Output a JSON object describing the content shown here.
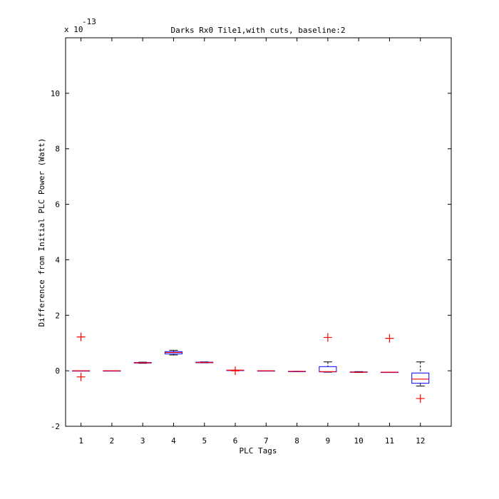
{
  "chart_data": {
    "type": "box",
    "title": "Darks Rx0 Tile1,with cuts, baseline:2",
    "xlabel": "PLC Tags",
    "ylabel": "Difference from Initial PLC Power (Watt)",
    "y_multiplier_base": "x 10",
    "y_multiplier_exp": "-13",
    "ylim": [
      -2,
      12
    ],
    "yticks": [
      -2,
      0,
      2,
      4,
      6,
      8,
      10
    ],
    "categories": [
      "1",
      "2",
      "3",
      "4",
      "5",
      "6",
      "7",
      "8",
      "9",
      "10",
      "11",
      "12"
    ],
    "boxes": [
      {
        "tag": "1",
        "min": 0,
        "q1": 0,
        "median": 0,
        "q3": 0,
        "max": 0,
        "outliers": [
          1.22,
          -0.22
        ]
      },
      {
        "tag": "2",
        "min": 0,
        "q1": 0,
        "median": 0,
        "q3": 0,
        "max": 0,
        "outliers": []
      },
      {
        "tag": "3",
        "min": 0.27,
        "q1": 0.28,
        "median": 0.29,
        "q3": 0.3,
        "max": 0.31,
        "outliers": []
      },
      {
        "tag": "4",
        "min": 0.57,
        "q1": 0.61,
        "median": 0.66,
        "q3": 0.69,
        "max": 0.74,
        "outliers": []
      },
      {
        "tag": "5",
        "min": 0.29,
        "q1": 0.29,
        "median": 0.3,
        "q3": 0.31,
        "max": 0.32,
        "outliers": []
      },
      {
        "tag": "6",
        "min": 0.02,
        "q1": 0.02,
        "median": 0.02,
        "q3": 0.02,
        "max": 0.02,
        "outliers": [
          0.0
        ]
      },
      {
        "tag": "7",
        "min": 0,
        "q1": 0,
        "median": 0,
        "q3": 0,
        "max": 0,
        "outliers": []
      },
      {
        "tag": "8",
        "min": -0.02,
        "q1": -0.02,
        "median": -0.02,
        "q3": -0.02,
        "max": -0.02,
        "outliers": []
      },
      {
        "tag": "9",
        "min": -0.05,
        "q1": -0.04,
        "median": -0.03,
        "q3": 0.15,
        "max": 0.32,
        "outliers": [
          1.2
        ]
      },
      {
        "tag": "10",
        "min": -0.06,
        "q1": -0.05,
        "median": -0.05,
        "q3": -0.04,
        "max": -0.03,
        "outliers": []
      },
      {
        "tag": "11",
        "min": -0.05,
        "q1": -0.05,
        "median": -0.05,
        "q3": -0.05,
        "max": -0.05,
        "outliers": [
          1.17
        ]
      },
      {
        "tag": "12",
        "min": -0.55,
        "q1": -0.45,
        "median": -0.3,
        "q3": -0.08,
        "max": 0.32,
        "outliers": [
          -1.0
        ]
      }
    ],
    "colors": {
      "box": "#0000ff",
      "median": "#ff0000",
      "whisker": "#000000",
      "outlier": "#ff0000"
    },
    "grid": false,
    "legend": "none"
  }
}
